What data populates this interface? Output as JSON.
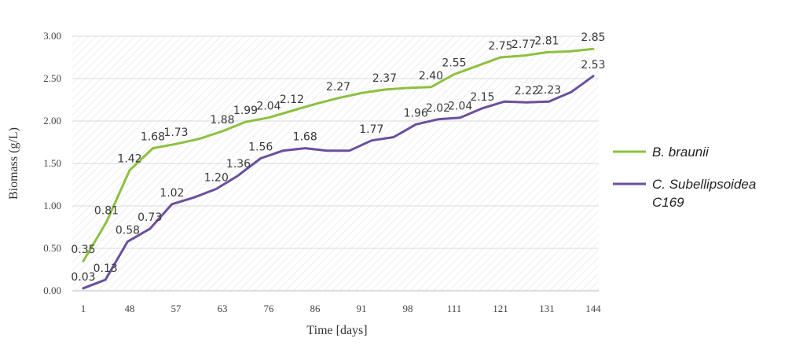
{
  "chart_data": {
    "type": "line",
    "title": "",
    "xlabel": "Time [days]",
    "ylabel": "Biomass (g/L)",
    "ylim": [
      0,
      3
    ],
    "y_ticks": [
      "0.00",
      "0.50",
      "1.00",
      "1.50",
      "2.00",
      "2.50",
      "3.00"
    ],
    "x_tick_labels": [
      "1",
      "48",
      "57",
      "63",
      "76",
      "86",
      "91",
      "98",
      "111",
      "121",
      "131",
      "144"
    ],
    "grid": "horizontal",
    "legend_position": "right",
    "series": [
      {
        "name": "B. braunii",
        "color": "#8dc040",
        "values": [
          0.35,
          0.81,
          1.42,
          1.68,
          1.73,
          1.79,
          1.88,
          1.99,
          2.04,
          2.12,
          2.2,
          2.27,
          2.33,
          2.37,
          2.39,
          2.4,
          2.55,
          2.65,
          2.75,
          2.77,
          2.81,
          2.82,
          2.85
        ],
        "labels": [
          "0.35",
          "0.81",
          "1.42",
          "1.68",
          "1.73",
          "",
          "1.88",
          "1.99",
          "2.04",
          "2.12",
          "",
          "2.27",
          "",
          "2.37",
          "",
          "2.40",
          "2.55",
          "",
          "2.75",
          "2.77",
          "2.81",
          "",
          "2.85"
        ]
      },
      {
        "name": "C. Subellipsoidea C169",
        "color": "#6b4f9e",
        "values": [
          0.03,
          0.13,
          0.58,
          0.73,
          1.02,
          1.1,
          1.2,
          1.36,
          1.56,
          1.65,
          1.68,
          1.65,
          1.65,
          1.77,
          1.81,
          1.96,
          2.02,
          2.04,
          2.15,
          2.23,
          2.22,
          2.23,
          2.34,
          2.53
        ],
        "labels": [
          "0.03",
          "0.13",
          "0.58",
          "0.73",
          "1.02",
          "",
          "1.20",
          "1.36",
          "1.56",
          "",
          "1.68",
          "",
          "",
          "1.77",
          "",
          "1.96",
          "2.02",
          "2.04",
          "2.15",
          "",
          "2.22",
          "2.23",
          "",
          "2.53"
        ]
      }
    ]
  }
}
